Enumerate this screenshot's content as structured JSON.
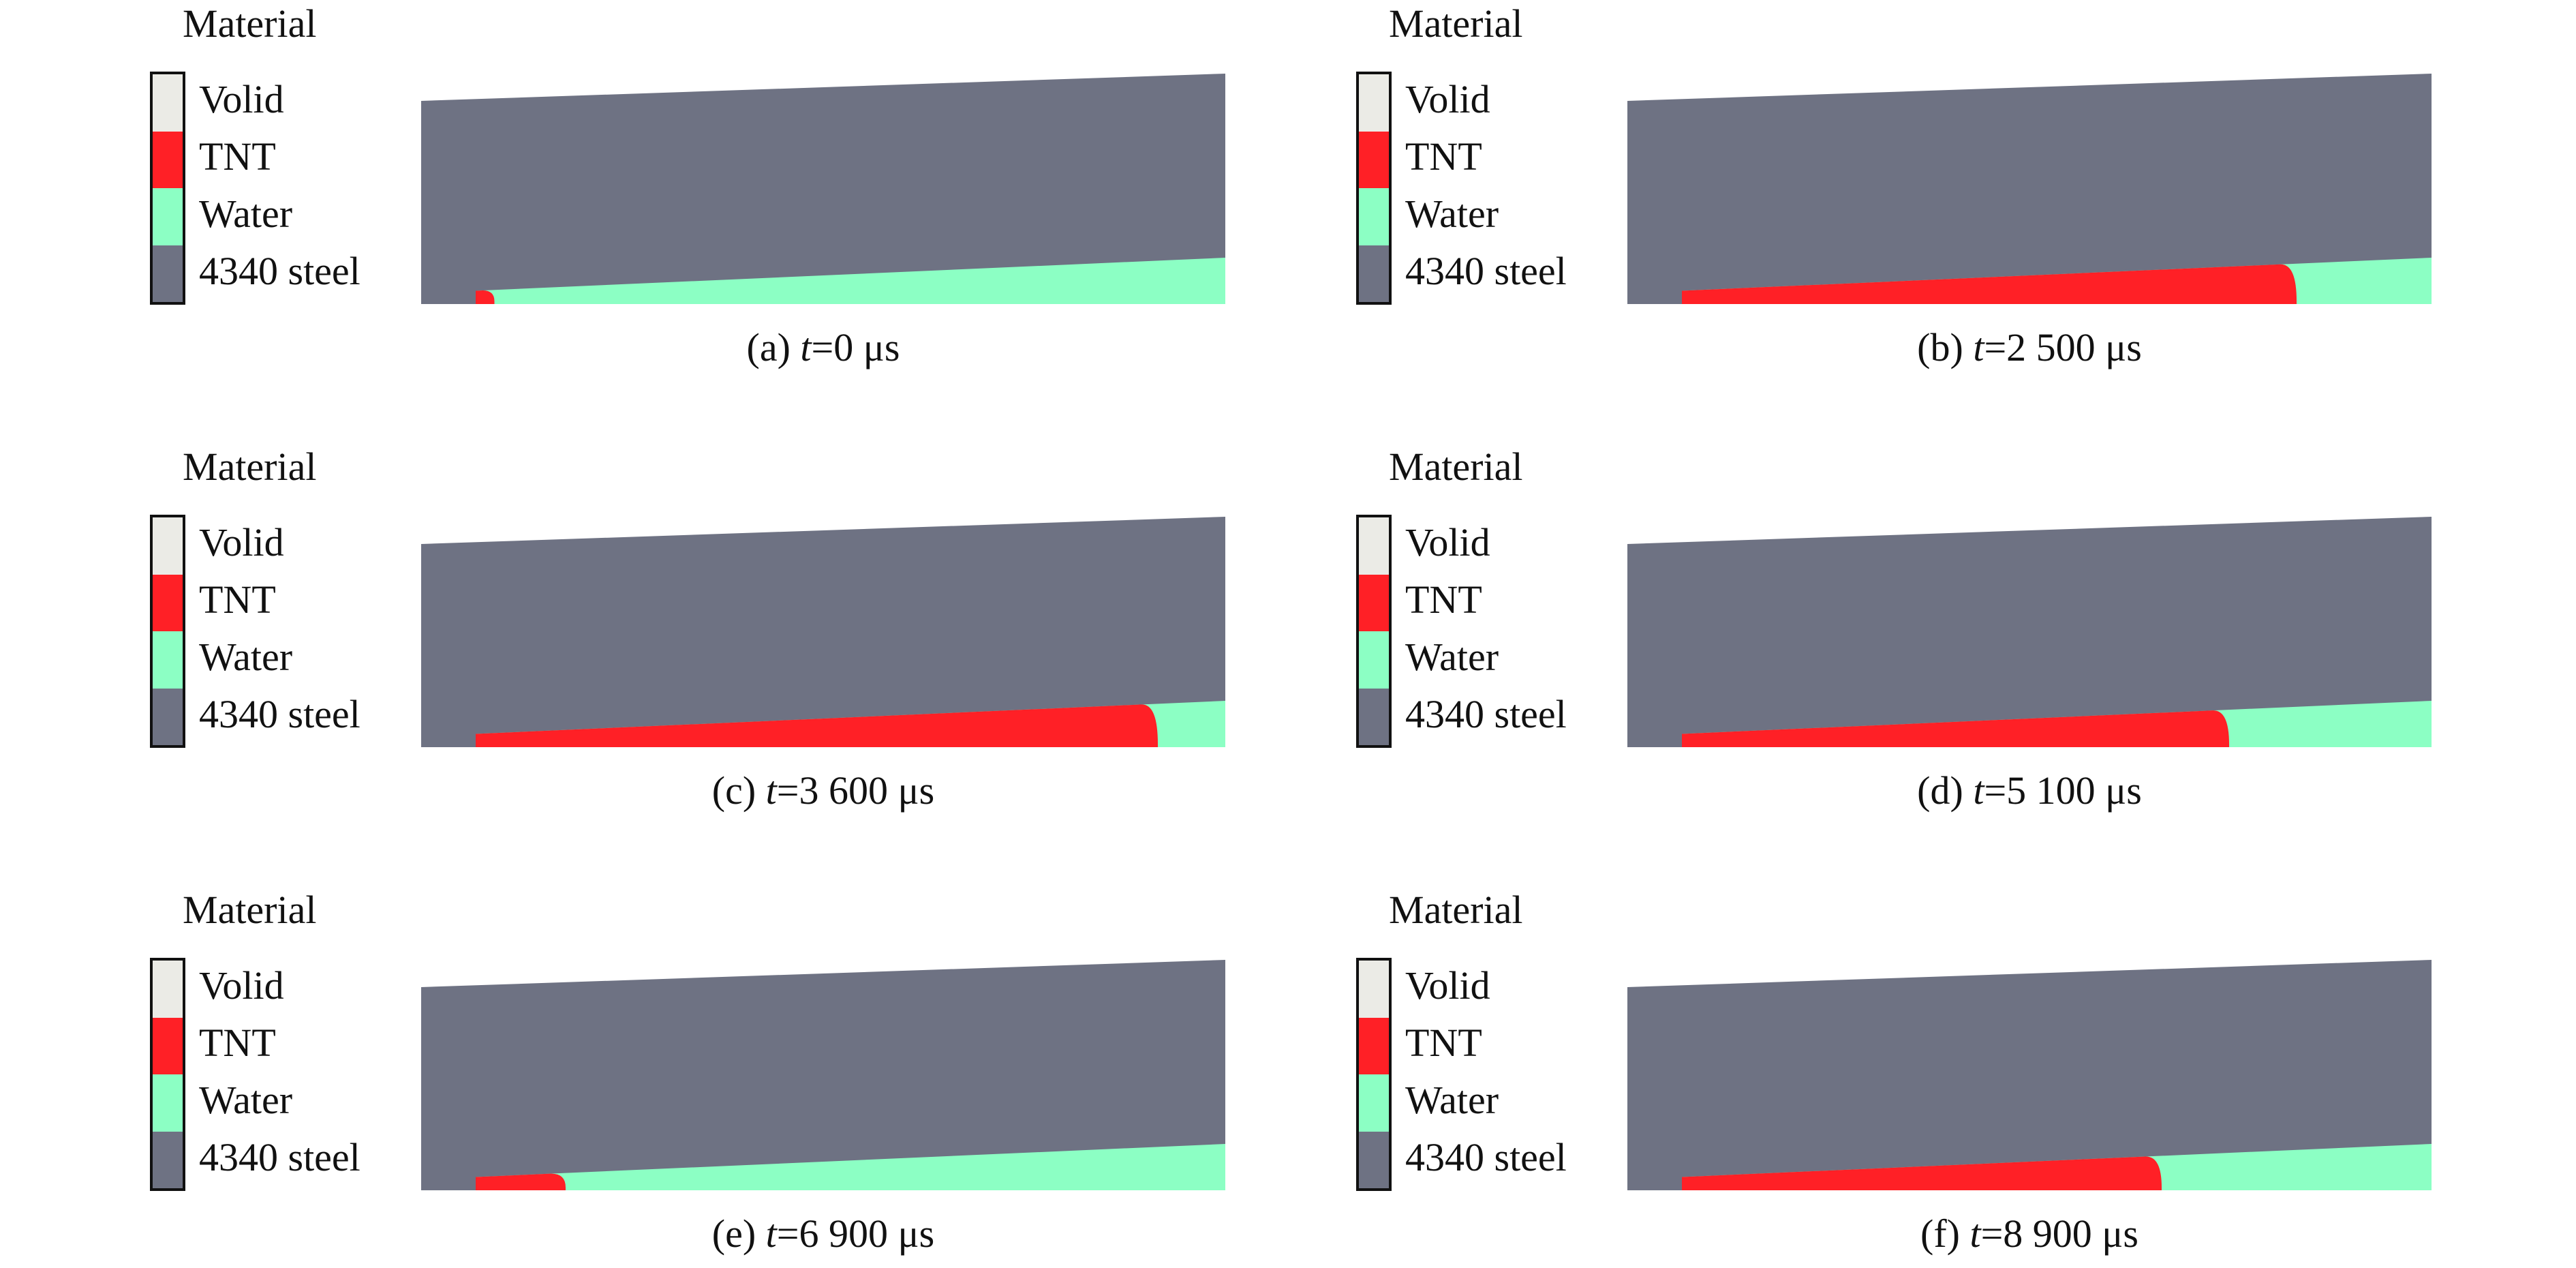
{
  "legend": {
    "title": "Material",
    "items": [
      {
        "label": "Volid",
        "color": "#ebebe6"
      },
      {
        "label": "TNT",
        "color": "#ff2026"
      },
      {
        "label": "Water",
        "color": "#8cffc4"
      },
      {
        "label": "4340 steel",
        "color": "#6e7283"
      }
    ]
  },
  "panels": [
    {
      "id": "a",
      "caption": {
        "prefix": "(a) ",
        "var": "t",
        "value": "=0 μs"
      },
      "tnt_fraction": 0.025
    },
    {
      "id": "b",
      "caption": {
        "prefix": "(b) ",
        "var": "t",
        "value": "=2 500 μs"
      },
      "tnt_fraction": 0.82
    },
    {
      "id": "c",
      "caption": {
        "prefix": "(c) ",
        "var": "t",
        "value": "=3 600 μs"
      },
      "tnt_fraction": 0.91
    },
    {
      "id": "d",
      "caption": {
        "prefix": "(d) ",
        "var": "t",
        "value": "=5 100 μs"
      },
      "tnt_fraction": 0.73
    },
    {
      "id": "e",
      "caption": {
        "prefix": "(e) ",
        "var": "t",
        "value": "=6 900 μs"
      },
      "tnt_fraction": 0.12
    },
    {
      "id": "f",
      "caption": {
        "prefix": "(f) ",
        "var": "t",
        "value": "=8 900 μs"
      },
      "tnt_fraction": 0.64
    }
  ]
}
